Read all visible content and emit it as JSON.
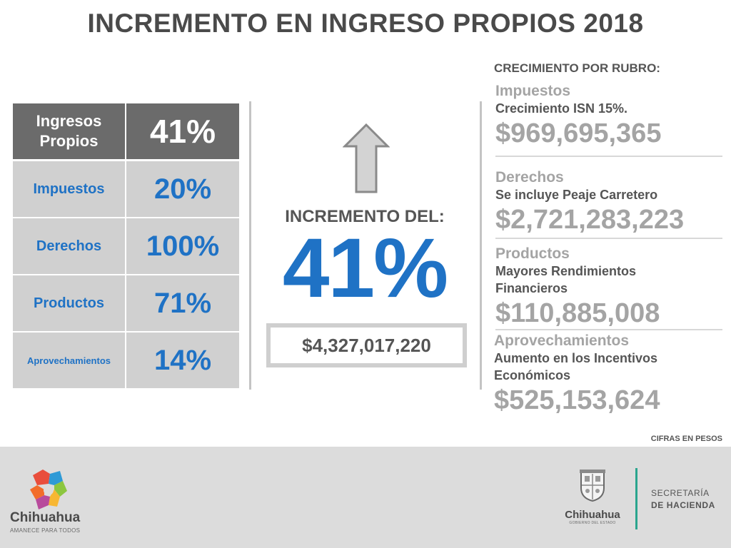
{
  "title": "INCREMENTO EN INGRESO PROPIOS 2018",
  "table": {
    "header": {
      "label": "Ingresos Propios",
      "value": "41%"
    },
    "rows": [
      {
        "label": "Impuestos",
        "value": "20%"
      },
      {
        "label": "Derechos",
        "value": "100%"
      },
      {
        "label": "Productos",
        "value": "71%"
      },
      {
        "label": "Aprovechamientos",
        "value": "14%"
      }
    ]
  },
  "center": {
    "label": "INCREMENTO DEL:",
    "percent": "41%",
    "total": "$4,327,017,220"
  },
  "right": {
    "heading": "CRECIMIENTO POR RUBRO:",
    "items": [
      {
        "name": "Impuestos",
        "desc": [
          "Crecimiento ISN 15%."
        ],
        "amount": "$969,695,365"
      },
      {
        "name": "Derechos",
        "desc": [
          "Se incluye Peaje Carretero"
        ],
        "amount": "$2,721,283,223"
      },
      {
        "name": "Productos",
        "desc": [
          "Mayores Rendimientos",
          "Financieros"
        ],
        "amount": "$110,885,008"
      },
      {
        "name": "Aprovechamientos",
        "desc": [
          "Aumento en los Incentivos",
          "Económicos"
        ],
        "amount": "$525,153,624"
      }
    ],
    "note": "CIFRAS EN PESOS"
  },
  "footer": {
    "left_logo": {
      "name": "Chihuahua",
      "tagline": "AMANECE PARA TODOS"
    },
    "gov_logo": {
      "name": "Chihuahua",
      "sub": "GOBIERNO DEL ESTADO"
    },
    "secretaria": {
      "line1": "SECRETARÍA",
      "line2": "DE HACIENDA"
    }
  },
  "colors": {
    "accent_blue": "#1f72c5",
    "header_gray": "#6b6b6b",
    "cell_gray": "#d0d0d0",
    "amount_gray": "#a4a4a4",
    "footer_bg": "#dcdcdc",
    "footer_line": "#2aa58e"
  },
  "icons": [
    "up-arrow-icon",
    "chihuahua-state-logo",
    "coat-of-arms-icon"
  ]
}
